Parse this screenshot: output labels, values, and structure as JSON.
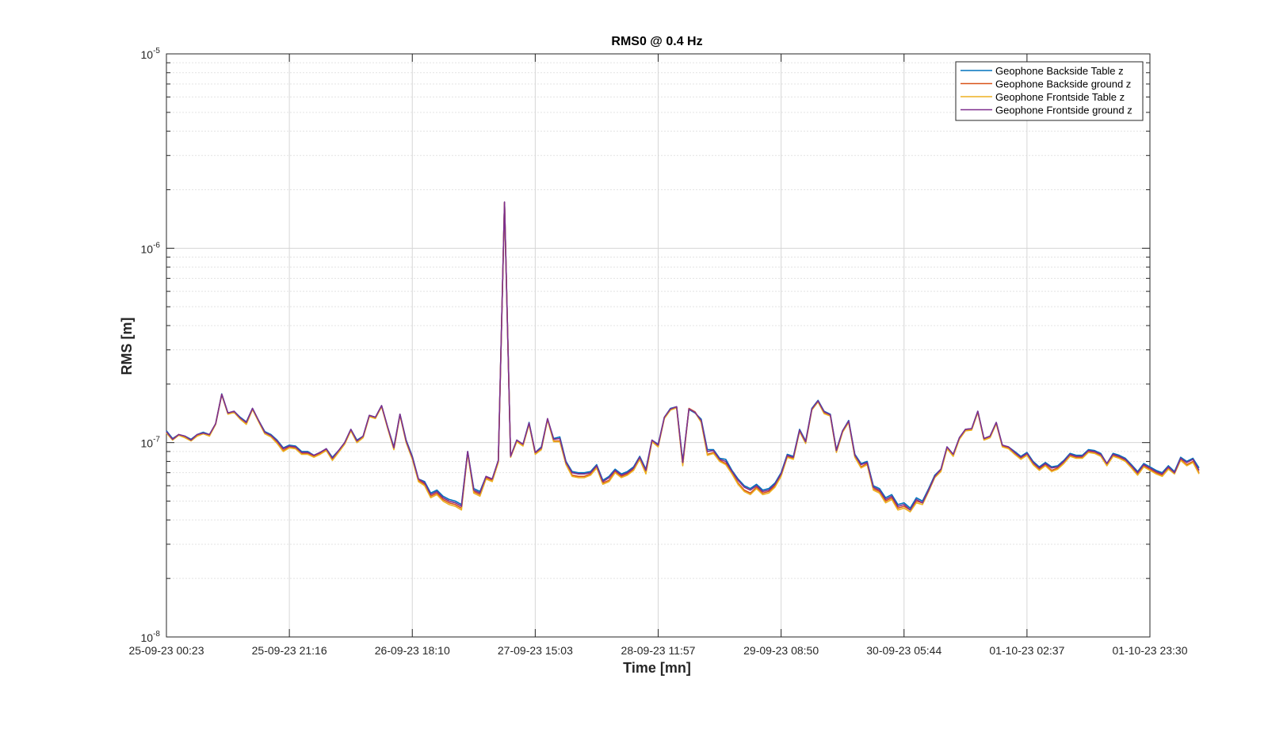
{
  "chart_data": {
    "type": "line",
    "title": "RMS0 @ 0.4 Hz",
    "xlabel": "Time [mn]",
    "ylabel": "RMS [m]",
    "yscale": "log",
    "ylim": [
      1e-08,
      1e-05
    ],
    "y_ticks": [
      {
        "base": "10",
        "exp": "-8"
      },
      {
        "base": "10",
        "exp": "-7"
      },
      {
        "base": "10",
        "exp": "-6"
      },
      {
        "base": "10",
        "exp": "-5"
      }
    ],
    "x_ticks": [
      "25-09-23 00:23",
      "25-09-23 21:16",
      "26-09-23 18:10",
      "27-09-23 15:03",
      "28-09-23 11:57",
      "29-09-23 08:50",
      "30-09-23 05:44",
      "01-10-23 02:37",
      "01-10-23 23:30"
    ],
    "grid": true,
    "legend_position": "top-right",
    "x_index_range": [
      0,
      160
    ],
    "series": [
      {
        "name": "Geophone Backside Table z",
        "color": "#0072BD",
        "values": [
          1.15e-07,
          1.05e-07,
          1.1e-07,
          1.08e-07,
          1.04e-07,
          1.1e-07,
          1.13e-07,
          1.1e-07,
          1.25e-07,
          1.78e-07,
          1.42e-07,
          1.45e-07,
          1.35e-07,
          1.28e-07,
          1.5e-07,
          1.3e-07,
          1.14e-07,
          1.1e-07,
          1.03e-07,
          9.4e-08,
          9.7e-08,
          9.6e-08,
          9e-08,
          9e-08,
          8.6e-08,
          8.9e-08,
          9.3e-08,
          8.4e-08,
          9.1e-08,
          1e-07,
          1.17e-07,
          1.03e-07,
          1.08e-07,
          1.38e-07,
          1.35e-07,
          1.55e-07,
          1.2e-07,
          9.5e-08,
          1.4e-07,
          1.03e-07,
          8.5e-08,
          6.5e-08,
          6.3e-08,
          5.5e-08,
          5.7e-08,
          5.3e-08,
          5.1e-08,
          5e-08,
          4.8e-08,
          9e-08,
          5.8e-08,
          5.6e-08,
          6.7e-08,
          6.5e-08,
          8.1e-08,
          1.72e-06,
          8.5e-08,
          1.03e-07,
          9.8e-08,
          1.27e-07,
          8.9e-08,
          9.5e-08,
          1.32e-07,
          1.05e-07,
          1.07e-07,
          8e-08,
          7.1e-08,
          7e-08,
          7e-08,
          7.1e-08,
          7.7e-08,
          6.4e-08,
          6.7e-08,
          7.3e-08,
          6.9e-08,
          7.1e-08,
          7.5e-08,
          8.5e-08,
          7.3e-08,
          1.03e-07,
          9.8e-08,
          1.35e-07,
          1.5e-07,
          1.53e-07,
          8e-08,
          1.48e-07,
          1.42e-07,
          1.32e-07,
          9.2e-08,
          9.2e-08,
          8.3e-08,
          8.2e-08,
          7.2e-08,
          6.5e-08,
          6e-08,
          5.8e-08,
          6.1e-08,
          5.7e-08,
          5.8e-08,
          6.2e-08,
          7e-08,
          8.7e-08,
          8.5e-08,
          1.17e-07,
          1.02e-07,
          1.5e-07,
          1.65e-07,
          1.45e-07,
          1.4e-07,
          9.2e-08,
          1.15e-07,
          1.3e-07,
          8.7e-08,
          7.8e-08,
          8e-08,
          6e-08,
          5.8e-08,
          5.2e-08,
          5.4e-08,
          4.8e-08,
          4.9e-08,
          4.6e-08,
          5.2e-08,
          5e-08,
          5.8e-08,
          6.8e-08,
          7.3e-08,
          9.5e-08,
          8.7e-08,
          1.06e-07,
          1.17e-07,
          1.18e-07,
          1.45e-07,
          1.05e-07,
          1.08e-07,
          1.27e-07,
          9.7e-08,
          9.5e-08,
          9e-08,
          8.5e-08,
          8.9e-08,
          8e-08,
          7.5e-08,
          7.9e-08,
          7.5e-08,
          7.6e-08,
          8.1e-08,
          8.8e-08,
          8.6e-08,
          8.6e-08,
          9.2e-08,
          9.1e-08,
          8.8e-08,
          7.8e-08,
          8.8e-08,
          8.6e-08,
          8.3e-08,
          7.7e-08,
          7.1e-08,
          7.8e-08,
          7.5e-08,
          7.2e-08,
          7e-08,
          7.6e-08,
          7.1e-08,
          8.4e-08,
          8e-08,
          8.3e-08,
          7.4e-08
        ]
      },
      {
        "name": "Geophone Backside ground z",
        "color": "#D95319",
        "values": [
          1.13e-07,
          1.04e-07,
          1.1e-07,
          1.07e-07,
          1.03e-07,
          1.09e-07,
          1.12e-07,
          1.09e-07,
          1.25e-07,
          1.77e-07,
          1.41e-07,
          1.44e-07,
          1.33e-07,
          1.25e-07,
          1.49e-07,
          1.29e-07,
          1.12e-07,
          1.08e-07,
          1e-07,
          9.1e-08,
          9.5e-08,
          9.4e-08,
          8.8e-08,
          8.8e-08,
          8.5e-08,
          8.8e-08,
          9.2e-08,
          8.2e-08,
          9e-08,
          9.9e-08,
          1.16e-07,
          1.01e-07,
          1.07e-07,
          1.37e-07,
          1.34e-07,
          1.54e-07,
          1.19e-07,
          9.3e-08,
          1.39e-07,
          1.01e-07,
          8.3e-08,
          6.4e-08,
          6.1e-08,
          5.3e-08,
          5.5e-08,
          5.1e-08,
          4.9e-08,
          4.8e-08,
          4.6e-08,
          8.9e-08,
          5.6e-08,
          5.4e-08,
          6.6e-08,
          6.4e-08,
          8e-08,
          1.72e-06,
          8.5e-08,
          1.02e-07,
          9.7e-08,
          1.25e-07,
          8.8e-08,
          9.3e-08,
          1.32e-07,
          1.02e-07,
          1.02e-07,
          7.8e-08,
          6.8e-08,
          6.7e-08,
          6.7e-08,
          6.9e-08,
          7.5e-08,
          6.2e-08,
          6.4e-08,
          7.1e-08,
          6.7e-08,
          6.9e-08,
          7.3e-08,
          8.3e-08,
          7e-08,
          1.02e-07,
          9.6e-08,
          1.34e-07,
          1.48e-07,
          1.52e-07,
          7.7e-08,
          1.5e-07,
          1.44e-07,
          1.28e-07,
          8.7e-08,
          8.9e-08,
          8.1e-08,
          7.8e-08,
          7e-08,
          6.2e-08,
          5.7e-08,
          5.5e-08,
          5.9e-08,
          5.5e-08,
          5.6e-08,
          6e-08,
          6.8e-08,
          8.5e-08,
          8.3e-08,
          1.15e-07,
          1e-07,
          1.48e-07,
          1.63e-07,
          1.42e-07,
          1.38e-07,
          9e-08,
          1.14e-07,
          1.28e-07,
          8.5e-08,
          7.5e-08,
          7.8e-08,
          5.8e-08,
          5.6e-08,
          5e-08,
          5.2e-08,
          4.6e-08,
          4.7e-08,
          4.5e-08,
          5e-08,
          4.9e-08,
          5.7e-08,
          6.7e-08,
          7.2e-08,
          9.4e-08,
          8.6e-08,
          1.05e-07,
          1.16e-07,
          1.17e-07,
          1.44e-07,
          1.04e-07,
          1.07e-07,
          1.26e-07,
          9.6e-08,
          9.4e-08,
          8.8e-08,
          8.3e-08,
          8.7e-08,
          7.8e-08,
          7.3e-08,
          7.7e-08,
          7.2e-08,
          7.4e-08,
          7.9e-08,
          8.6e-08,
          8.4e-08,
          8.4e-08,
          9e-08,
          8.9e-08,
          8.6e-08,
          7.7e-08,
          8.6e-08,
          8.4e-08,
          8.1e-08,
          7.5e-08,
          6.9e-08,
          7.6e-08,
          7.3e-08,
          7e-08,
          6.8e-08,
          7.4e-08,
          7e-08,
          8.2e-08,
          7.7e-08,
          8e-08,
          7e-08
        ]
      },
      {
        "name": "Geophone Frontside Table z",
        "color": "#EDB120",
        "values": [
          1.12e-07,
          1.03e-07,
          1.09e-07,
          1.06e-07,
          1.02e-07,
          1.08e-07,
          1.11e-07,
          1.08e-07,
          1.24e-07,
          1.76e-07,
          1.4e-07,
          1.43e-07,
          1.32e-07,
          1.24e-07,
          1.48e-07,
          1.28e-07,
          1.11e-07,
          1.07e-07,
          9.9e-08,
          9e-08,
          9.4e-08,
          9.3e-08,
          8.7e-08,
          8.7e-08,
          8.4e-08,
          8.7e-08,
          9.1e-08,
          8.1e-08,
          8.9e-08,
          9.8e-08,
          1.15e-07,
          1e-07,
          1.06e-07,
          1.36e-07,
          1.33e-07,
          1.53e-07,
          1.18e-07,
          9.2e-08,
          1.38e-07,
          1e-07,
          8.2e-08,
          6.3e-08,
          6e-08,
          5.2e-08,
          5.4e-08,
          5e-08,
          4.8e-08,
          4.7e-08,
          4.5e-08,
          8.8e-08,
          5.5e-08,
          5.3e-08,
          6.5e-08,
          6.3e-08,
          7.9e-08,
          1.71e-06,
          8.4e-08,
          1.01e-07,
          9.6e-08,
          1.24e-07,
          8.7e-08,
          9.2e-08,
          1.31e-07,
          1.01e-07,
          1.01e-07,
          7.7e-08,
          6.7e-08,
          6.6e-08,
          6.6e-08,
          6.8e-08,
          7.4e-08,
          6.1e-08,
          6.3e-08,
          7e-08,
          6.6e-08,
          6.8e-08,
          7.2e-08,
          8.2e-08,
          6.9e-08,
          1.01e-07,
          9.5e-08,
          1.33e-07,
          1.47e-07,
          1.51e-07,
          7.6e-08,
          1.49e-07,
          1.43e-07,
          1.27e-07,
          8.6e-08,
          8.8e-08,
          8e-08,
          7.7e-08,
          6.9e-08,
          6.1e-08,
          5.6e-08,
          5.4e-08,
          5.8e-08,
          5.4e-08,
          5.5e-08,
          5.9e-08,
          6.7e-08,
          8.4e-08,
          8.2e-08,
          1.14e-07,
          9.9e-08,
          1.47e-07,
          1.62e-07,
          1.41e-07,
          1.37e-07,
          8.9e-08,
          1.13e-07,
          1.27e-07,
          8.4e-08,
          7.4e-08,
          7.7e-08,
          5.7e-08,
          5.5e-08,
          4.9e-08,
          5.1e-08,
          4.5e-08,
          4.6e-08,
          4.4e-08,
          4.9e-08,
          4.8e-08,
          5.6e-08,
          6.6e-08,
          7.1e-08,
          9.3e-08,
          8.5e-08,
          1.04e-07,
          1.15e-07,
          1.16e-07,
          1.43e-07,
          1.03e-07,
          1.06e-07,
          1.25e-07,
          9.5e-08,
          9.3e-08,
          8.7e-08,
          8.2e-08,
          8.6e-08,
          7.7e-08,
          7.2e-08,
          7.6e-08,
          7.1e-08,
          7.3e-08,
          7.8e-08,
          8.5e-08,
          8.3e-08,
          8.3e-08,
          8.9e-08,
          8.8e-08,
          8.5e-08,
          7.6e-08,
          8.5e-08,
          8.3e-08,
          8e-08,
          7.4e-08,
          6.8e-08,
          7.5e-08,
          7.2e-08,
          6.9e-08,
          6.7e-08,
          7.3e-08,
          6.9e-08,
          8.1e-08,
          7.6e-08,
          7.9e-08,
          6.9e-08
        ]
      },
      {
        "name": "Geophone Frontside ground z",
        "color": "#7E2F8E",
        "values": [
          1.14e-07,
          1.04e-07,
          1.1e-07,
          1.08e-07,
          1.03e-07,
          1.1e-07,
          1.12e-07,
          1.1e-07,
          1.25e-07,
          1.77e-07,
          1.42e-07,
          1.45e-07,
          1.34e-07,
          1.27e-07,
          1.5e-07,
          1.3e-07,
          1.13e-07,
          1.09e-07,
          1.02e-07,
          9.3e-08,
          9.6e-08,
          9.5e-08,
          8.9e-08,
          8.9e-08,
          8.6e-08,
          8.9e-08,
          9.3e-08,
          8.3e-08,
          9.1e-08,
          1e-07,
          1.17e-07,
          1.02e-07,
          1.08e-07,
          1.38e-07,
          1.35e-07,
          1.55e-07,
          1.2e-07,
          9.4e-08,
          1.4e-07,
          1.02e-07,
          8.4e-08,
          6.5e-08,
          6.2e-08,
          5.4e-08,
          5.6e-08,
          5.2e-08,
          5e-08,
          4.9e-08,
          4.7e-08,
          9e-08,
          5.7e-08,
          5.5e-08,
          6.7e-08,
          6.5e-08,
          8.1e-08,
          1.73e-06,
          8.5e-08,
          1.03e-07,
          9.8e-08,
          1.26e-07,
          8.9e-08,
          9.4e-08,
          1.33e-07,
          1.04e-07,
          1.05e-07,
          7.9e-08,
          7e-08,
          6.9e-08,
          6.9e-08,
          7e-08,
          7.6e-08,
          6.3e-08,
          6.6e-08,
          7.2e-08,
          6.8e-08,
          7e-08,
          7.4e-08,
          8.4e-08,
          7.2e-08,
          1.03e-07,
          9.7e-08,
          1.35e-07,
          1.49e-07,
          1.53e-07,
          7.9e-08,
          1.49e-07,
          1.43e-07,
          1.3e-07,
          9e-08,
          9.1e-08,
          8.2e-08,
          8e-08,
          7.1e-08,
          6.4e-08,
          5.9e-08,
          5.7e-08,
          6e-08,
          5.6e-08,
          5.7e-08,
          6.1e-08,
          6.9e-08,
          8.6e-08,
          8.4e-08,
          1.16e-07,
          1.01e-07,
          1.49e-07,
          1.64e-07,
          1.44e-07,
          1.39e-07,
          9.1e-08,
          1.15e-07,
          1.29e-07,
          8.6e-08,
          7.7e-08,
          7.9e-08,
          5.9e-08,
          5.7e-08,
          5.1e-08,
          5.3e-08,
          4.7e-08,
          4.8e-08,
          4.5e-08,
          5.1e-08,
          4.9e-08,
          5.7e-08,
          6.7e-08,
          7.3e-08,
          9.5e-08,
          8.7e-08,
          1.06e-07,
          1.17e-07,
          1.18e-07,
          1.45e-07,
          1.05e-07,
          1.08e-07,
          1.27e-07,
          9.7e-08,
          9.5e-08,
          8.9e-08,
          8.4e-08,
          8.8e-08,
          7.9e-08,
          7.4e-08,
          7.8e-08,
          7.4e-08,
          7.5e-08,
          8e-08,
          8.7e-08,
          8.5e-08,
          8.5e-08,
          9.1e-08,
          9e-08,
          8.7e-08,
          7.8e-08,
          8.7e-08,
          8.5e-08,
          8.2e-08,
          7.6e-08,
          7e-08,
          7.7e-08,
          7.4e-08,
          7.1e-08,
          6.9e-08,
          7.5e-08,
          7e-08,
          8.3e-08,
          7.9e-08,
          8.2e-08,
          7.2e-08
        ]
      }
    ]
  }
}
